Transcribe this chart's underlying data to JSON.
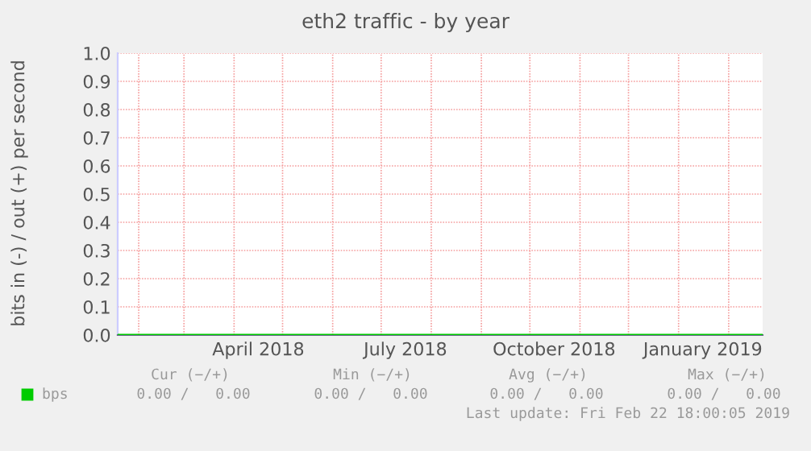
{
  "chart_data": {
    "type": "line",
    "title": "eth2 traffic - by year",
    "ylabel": "bits in (-) / out (+) per second",
    "series": [
      {
        "name": "bps",
        "color": "#00cc00",
        "x": [
          "2018-01-19",
          "2019-02-22"
        ],
        "values": [
          0,
          0
        ]
      }
    ],
    "xlim": [
      "2018-01-19",
      "2019-02-22"
    ],
    "xticks": [
      {
        "value": "2018-02-01",
        "label": null
      },
      {
        "value": "2018-03-01",
        "label": null
      },
      {
        "value": "2018-04-01",
        "label": null
      },
      {
        "value": "2018-04-16",
        "label": "April 2018"
      },
      {
        "value": "2018-05-01",
        "label": null
      },
      {
        "value": "2018-06-01",
        "label": null
      },
      {
        "value": "2018-07-01",
        "label": null
      },
      {
        "value": "2018-07-16",
        "label": "July 2018"
      },
      {
        "value": "2018-08-01",
        "label": null
      },
      {
        "value": "2018-09-01",
        "label": null
      },
      {
        "value": "2018-10-01",
        "label": null
      },
      {
        "value": "2018-10-16",
        "label": "October 2018"
      },
      {
        "value": "2018-11-01",
        "label": null
      },
      {
        "value": "2018-12-01",
        "label": null
      },
      {
        "value": "2019-01-01",
        "label": null
      },
      {
        "value": "2019-01-16",
        "label": "January 2019"
      },
      {
        "value": "2019-02-01",
        "label": null
      }
    ],
    "ylim": [
      0,
      1.0
    ],
    "yticks": [
      {
        "value": 0,
        "label": "0.0"
      },
      {
        "value": 0.1,
        "label": "0.1"
      },
      {
        "value": 0.2,
        "label": "0.2"
      },
      {
        "value": 0.3,
        "label": "0.3"
      },
      {
        "value": 0.4,
        "label": "0.4"
      },
      {
        "value": 0.5,
        "label": "0.5"
      },
      {
        "value": 0.6,
        "label": "0.6"
      },
      {
        "value": 0.7,
        "label": "0.7"
      },
      {
        "value": 0.8,
        "label": "0.8"
      },
      {
        "value": 0.9,
        "label": "0.9"
      },
      {
        "value": 1.0,
        "label": "1.0"
      }
    ],
    "grid": true,
    "legend": "bottom left",
    "marker": "none",
    "line_style": "solid",
    "annotations": [
      "Cur (−/+)",
      "Min (−/+)",
      "Avg (−/+)",
      "Max (−/+)",
      "0.00 /   0.00",
      "0.00 /   0.00",
      "0.00 /   0.00",
      "0.00 /   0.00",
      "Last update: Fri Feb 22 18:00:05 2019"
    ]
  }
}
